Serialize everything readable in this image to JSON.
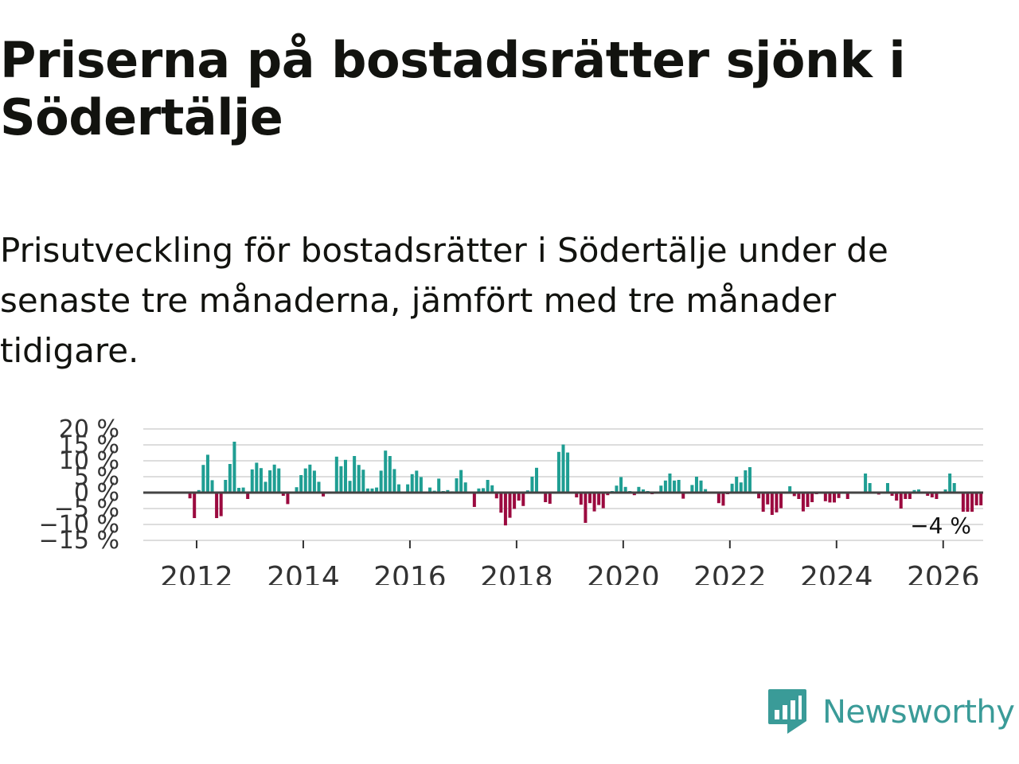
{
  "title": "Priserna på bostadsrätter sjönk i Södertälje",
  "subtitle": "Prisutveckling för bostadsrätter i Södertälje under de senaste tre månaderna, jämfört med tre månader tidigare.",
  "logo": {
    "text": "Newsworthy"
  },
  "colors": {
    "positive": "#1f9e93",
    "negative": "#9b0a3f",
    "zero_line": "#444444",
    "grid": "#dddddd",
    "brand": "#3a9b98"
  },
  "chart_data": {
    "type": "bar",
    "title": "Priserna på bostadsrätter sjönk i Södertälje",
    "xlabel": "",
    "ylabel": "",
    "start": [
      2011,
      11
    ],
    "x_range": [
      2011,
      2026.75
    ],
    "ylim": [
      -15,
      20
    ],
    "y_ticks": [
      20,
      15,
      10,
      5,
      0,
      -5,
      -10,
      -15
    ],
    "y_tick_labels": [
      "20 %",
      "15 %",
      "10 %",
      "5 %",
      "0 %",
      "−5 %",
      "−10 %",
      "−15 %"
    ],
    "x_ticks": [
      2012,
      2014,
      2016,
      2018,
      2020,
      2022,
      2024,
      2026
    ],
    "x_tick_labels": [
      "2012",
      "2014",
      "2016",
      "2018",
      "2020",
      "2022",
      "2024",
      "2026"
    ],
    "last_value_label": "−4 %",
    "values": [
      -1.8,
      -8,
      0.8,
      8.7,
      11.9,
      3.9,
      -8,
      -7.4,
      4,
      9,
      16,
      1.5,
      1.6,
      -2,
      7.3,
      9.4,
      7.7,
      3.4,
      7,
      8.8,
      7.6,
      -1,
      -3.6,
      0.3,
      1.7,
      5.5,
      7.6,
      8.8,
      6.9,
      3.4,
      -1.2,
      0.2,
      0,
      11.3,
      8.3,
      10.3,
      3.7,
      11.5,
      8.7,
      7.2,
      1.3,
      1.3,
      1.6,
      6.9,
      13.2,
      11.5,
      7.4,
      2.6,
      0.3,
      2.6,
      5.8,
      6.9,
      4.9,
      0.2,
      1.6,
      0.6,
      4.4,
      0.5,
      0.8,
      0.4,
      4.5,
      7.1,
      3.2,
      0.3,
      -4.5,
      1.3,
      1.4,
      4,
      2.3,
      -1.8,
      -6.3,
      -10.3,
      -7.9,
      -5.1,
      -2.5,
      -4.2,
      0.7,
      5,
      7.8,
      0.2,
      -3,
      -3.5,
      0.3,
      12.8,
      15.1,
      12.6,
      0.3,
      -1.5,
      -3.8,
      -9.5,
      -3.3,
      -5.9,
      -3.9,
      -4.9,
      -0.8,
      0.5,
      2.2,
      4.9,
      1.8,
      0.5,
      -0.8,
      1.8,
      1,
      0.5,
      -0.5,
      0,
      2.2,
      3.8,
      6,
      3.8,
      4,
      -1.9,
      0,
      2.4,
      5,
      3.8,
      1.1,
      -0.3,
      0,
      -3.3,
      -4.1,
      -0.5,
      2.8,
      5,
      3.2,
      7,
      8,
      -0.3,
      -1.8,
      -6,
      -3.7,
      -7,
      -6.2,
      -4.9,
      -0.3,
      2,
      -1.1,
      -2,
      -5.9,
      -4.5,
      -3,
      -0.5,
      0,
      -2.7,
      -3.1,
      -3.1,
      -1.7,
      -0.3,
      -2,
      0,
      -0.2,
      0,
      6,
      3,
      0,
      -0.6,
      0,
      3,
      -1,
      -2.5,
      -5,
      -2,
      -2,
      0.8,
      1,
      0,
      -1,
      -1.5,
      -2,
      0,
      1,
      6,
      3,
      0,
      -6,
      -6,
      -6,
      -4,
      -4
    ]
  }
}
